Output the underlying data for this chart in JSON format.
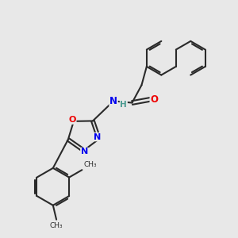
{
  "background_color": "#e8e8e8",
  "bond_color": "#2a2a2a",
  "bond_width": 1.5,
  "atom_colors": {
    "N": "#0000ee",
    "O": "#ee0000",
    "H": "#4a9a90",
    "C": "#2a2a2a"
  }
}
